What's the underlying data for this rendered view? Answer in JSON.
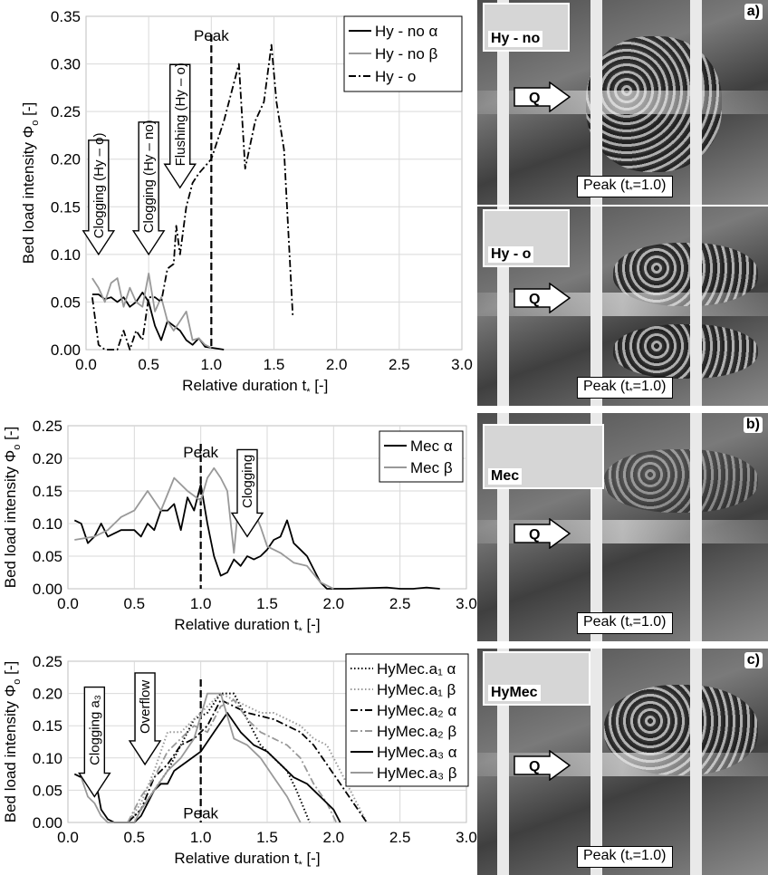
{
  "charts": [
    {
      "y_label": "Bed load intensity Φ",
      "y_label_sub": "o",
      "y_label_tail": " [-]",
      "x_label": "Relative duration t",
      "x_label_sub": "*",
      "x_label_tail": " [-]",
      "peak_label": "Peak",
      "annotations": [
        "Clogging (Hy – o)",
        "Clogging (Hy – no)",
        "Flushing (Hy – o)"
      ]
    },
    {
      "y_label": "Bed load intensity Φ",
      "y_label_sub": "o",
      "y_label_tail": " [-]",
      "x_label": "Relative duration t",
      "x_label_sub": "*",
      "x_label_tail": " [-]",
      "peak_label": "Peak",
      "annotations": [
        "Clogging"
      ]
    },
    {
      "y_label": "Bed load intensity Φ",
      "y_label_sub": "o",
      "y_label_tail": " [-]",
      "x_label": "Relative duration t",
      "x_label_sub": "*",
      "x_label_tail": " [-]",
      "peak_label": "Peak",
      "annotations": [
        "Clogging a₃",
        "Overflow"
      ]
    }
  ],
  "photos": [
    {
      "tag": "a)",
      "inset": "Hy - no",
      "q": "Q",
      "peak": "Peak (t",
      "peak_sub": "*",
      "peak_tail": "=1.0)"
    },
    {
      "tag": "",
      "inset": "Hy - o",
      "q": "Q",
      "peak": "Peak (t",
      "peak_sub": "*",
      "peak_tail": "=1.0)"
    },
    {
      "tag": "b)",
      "inset": "Mec",
      "q": "Q",
      "peak": "Peak (t",
      "peak_sub": "*",
      "peak_tail": "=1.0)"
    },
    {
      "tag": "c)",
      "inset": "HyMec",
      "q": "Q",
      "peak": "Peak (t",
      "peak_sub": "*",
      "peak_tail": "=1.0)"
    }
  ],
  "chart_data": [
    {
      "type": "line",
      "xlim": [
        0,
        3.0
      ],
      "ylim": [
        0,
        0.35
      ],
      "xticks": [
        "0.0",
        "0.5",
        "1.0",
        "1.5",
        "2.0",
        "2.5",
        "3.0"
      ],
      "yticks": [
        "0.00",
        "0.05",
        "0.10",
        "0.15",
        "0.20",
        "0.25",
        "0.30",
        "0.35"
      ],
      "grid": true,
      "legend": "top-right",
      "peak_x": 1.0,
      "series": [
        {
          "name": "Hy - no α",
          "color": "#000000",
          "dash": "solid",
          "x": [
            0.05,
            0.1,
            0.15,
            0.2,
            0.25,
            0.3,
            0.35,
            0.4,
            0.45,
            0.5,
            0.55,
            0.6,
            0.65,
            0.7,
            0.75,
            0.8,
            0.85,
            0.9,
            0.95,
            1.0,
            1.05,
            1.1
          ],
          "y": [
            0.058,
            0.058,
            0.053,
            0.055,
            0.05,
            0.055,
            0.045,
            0.05,
            0.06,
            0.05,
            0.025,
            0.01,
            0.03,
            0.025,
            0.02,
            0.01,
            0.005,
            0.012,
            0.003,
            0.002,
            0.001,
            0.0
          ]
        },
        {
          "name": "Hy - no  β",
          "color": "#999999",
          "dash": "solid",
          "x": [
            0.05,
            0.1,
            0.15,
            0.2,
            0.25,
            0.3,
            0.35,
            0.4,
            0.45,
            0.5,
            0.55,
            0.6,
            0.65,
            0.7,
            0.75,
            0.8,
            0.85,
            0.9,
            0.95,
            1.0
          ],
          "y": [
            0.075,
            0.065,
            0.05,
            0.07,
            0.075,
            0.045,
            0.065,
            0.05,
            0.045,
            0.08,
            0.04,
            0.055,
            0.03,
            0.02,
            0.03,
            0.04,
            0.01,
            0.012,
            0.005,
            0.002
          ]
        },
        {
          "name": "Hy - o",
          "color": "#000000",
          "dash": "dashdot",
          "x": [
            0.05,
            0.1,
            0.15,
            0.2,
            0.25,
            0.3,
            0.35,
            0.4,
            0.45,
            0.5,
            0.55,
            0.6,
            0.65,
            0.7,
            0.72,
            0.75,
            0.8,
            0.85,
            0.9,
            1.0,
            1.1,
            1.22,
            1.27,
            1.35,
            1.42,
            1.48,
            1.52,
            1.58,
            1.65
          ],
          "y": [
            0.055,
            0.005,
            0.0,
            0.0,
            0.0,
            0.02,
            0.0,
            0.02,
            0.01,
            0.055,
            0.055,
            0.05,
            0.085,
            0.09,
            0.13,
            0.1,
            0.15,
            0.175,
            0.185,
            0.2,
            0.24,
            0.3,
            0.19,
            0.24,
            0.26,
            0.32,
            0.26,
            0.21,
            0.035
          ]
        }
      ]
    },
    {
      "type": "line",
      "xlim": [
        0,
        3.0
      ],
      "ylim": [
        0,
        0.25
      ],
      "xticks": [
        "0.0",
        "0.5",
        "1.0",
        "1.5",
        "2.0",
        "2.5",
        "3.0"
      ],
      "yticks": [
        "0.00",
        "0.05",
        "0.10",
        "0.15",
        "0.20",
        "0.25"
      ],
      "grid": true,
      "legend": "top-right",
      "peak_x": 1.0,
      "series": [
        {
          "name": "Mec α",
          "color": "#000000",
          "dash": "solid",
          "x": [
            0.05,
            0.1,
            0.15,
            0.2,
            0.25,
            0.3,
            0.35,
            0.4,
            0.45,
            0.5,
            0.55,
            0.6,
            0.65,
            0.7,
            0.75,
            0.8,
            0.85,
            0.9,
            0.95,
            1.0,
            1.05,
            1.1,
            1.15,
            1.2,
            1.25,
            1.3,
            1.35,
            1.4,
            1.45,
            1.5,
            1.55,
            1.6,
            1.65,
            1.7,
            1.75,
            1.8,
            1.85,
            1.9,
            1.95,
            2.0,
            2.1,
            2.4,
            2.5,
            2.6,
            2.7,
            2.8
          ],
          "y": [
            0.105,
            0.1,
            0.07,
            0.08,
            0.1,
            0.08,
            0.085,
            0.09,
            0.09,
            0.09,
            0.08,
            0.1,
            0.09,
            0.12,
            0.12,
            0.13,
            0.09,
            0.14,
            0.12,
            0.16,
            0.1,
            0.05,
            0.02,
            0.025,
            0.045,
            0.035,
            0.05,
            0.045,
            0.05,
            0.06,
            0.075,
            0.08,
            0.105,
            0.07,
            0.06,
            0.05,
            0.03,
            0.01,
            0.0,
            0.0,
            0.0,
            0.002,
            0.0,
            0.0,
            0.002,
            0.0
          ]
        },
        {
          "name": "Mec β",
          "color": "#999999",
          "dash": "solid",
          "x": [
            0.05,
            0.2,
            0.3,
            0.4,
            0.5,
            0.6,
            0.7,
            0.8,
            0.9,
            1.0,
            1.05,
            1.1,
            1.15,
            1.2,
            1.25,
            1.3,
            1.35,
            1.4,
            1.45,
            1.5,
            1.6,
            1.7,
            1.8,
            1.9,
            2.0
          ],
          "y": [
            0.075,
            0.08,
            0.09,
            0.11,
            0.12,
            0.15,
            0.12,
            0.17,
            0.15,
            0.135,
            0.17,
            0.185,
            0.17,
            0.15,
            0.055,
            0.165,
            0.09,
            0.12,
            0.095,
            0.065,
            0.055,
            0.04,
            0.035,
            0.01,
            0.0
          ]
        }
      ]
    },
    {
      "type": "line",
      "xlim": [
        0,
        3.0
      ],
      "ylim": [
        0,
        0.25
      ],
      "xticks": [
        "0.0",
        "0.5",
        "1.0",
        "1.5",
        "2.0",
        "2.5",
        "3.0"
      ],
      "yticks": [
        "0.00",
        "0.05",
        "0.10",
        "0.15",
        "0.20",
        "0.25"
      ],
      "grid": true,
      "legend": "top-right",
      "peak_x": 1.0,
      "series": [
        {
          "name": "HyMec.a₁ α",
          "color": "#000000",
          "dash": "dotted",
          "x": [
            0.45,
            0.55,
            0.65,
            0.75,
            0.85,
            0.95,
            1.05,
            1.15,
            1.25,
            1.35,
            1.45,
            1.55,
            1.65,
            1.72,
            1.78,
            1.82
          ],
          "y": [
            0.0,
            0.02,
            0.05,
            0.08,
            0.12,
            0.16,
            0.17,
            0.2,
            0.2,
            0.16,
            0.12,
            0.1,
            0.08,
            0.05,
            0.02,
            0.0
          ]
        },
        {
          "name": "HyMec.a₁ β",
          "color": "#999999",
          "dash": "dotted",
          "x": [
            0.45,
            0.55,
            0.65,
            0.75,
            0.85,
            0.95,
            1.05,
            1.15,
            1.25,
            1.35,
            1.45,
            1.55,
            1.65,
            1.75,
            1.85,
            1.95,
            2.05,
            2.15,
            2.25
          ],
          "y": [
            0.0,
            0.03,
            0.08,
            0.14,
            0.14,
            0.16,
            0.18,
            0.2,
            0.19,
            0.18,
            0.17,
            0.17,
            0.16,
            0.15,
            0.13,
            0.12,
            0.08,
            0.04,
            0.0
          ]
        },
        {
          "name": "HyMec.a₂ α",
          "color": "#000000",
          "dash": "dashdot",
          "x": [
            0.45,
            0.55,
            0.65,
            0.75,
            0.85,
            0.95,
            1.05,
            1.15,
            1.25,
            1.35,
            1.45,
            1.55,
            1.65,
            1.75,
            1.85,
            1.95,
            2.05,
            2.15,
            2.25
          ],
          "y": [
            0.0,
            0.02,
            0.07,
            0.09,
            0.12,
            0.13,
            0.15,
            0.19,
            0.18,
            0.17,
            0.165,
            0.16,
            0.15,
            0.14,
            0.12,
            0.09,
            0.06,
            0.03,
            0.0
          ]
        },
        {
          "name": "HyMec.a₂ β",
          "color": "#999999",
          "dash": "dashdot",
          "x": [
            0.45,
            0.55,
            0.65,
            0.75,
            0.85,
            0.95,
            1.05,
            1.15,
            1.25,
            1.35,
            1.45,
            1.55,
            1.65,
            1.75,
            1.85,
            1.95,
            2.02
          ],
          "y": [
            0.0,
            0.04,
            0.07,
            0.11,
            0.13,
            0.15,
            0.14,
            0.18,
            0.19,
            0.16,
            0.14,
            0.13,
            0.12,
            0.1,
            0.06,
            0.03,
            0.0
          ]
        },
        {
          "name": "HyMec.a₃ α",
          "color": "#000000",
          "dash": "solid",
          "x": [
            0.05,
            0.1,
            0.15,
            0.2,
            0.25,
            0.3,
            0.35,
            0.4,
            0.5,
            0.55,
            0.6,
            0.65,
            0.7,
            0.75,
            0.8,
            0.9,
            1.0,
            1.1,
            1.2,
            1.3,
            1.4,
            1.5,
            1.6,
            1.7,
            1.8,
            1.9,
            2.0,
            2.05
          ],
          "y": [
            0.075,
            0.07,
            0.065,
            0.075,
            0.02,
            0.005,
            0.0,
            0.0,
            0.0,
            0.01,
            0.03,
            0.05,
            0.06,
            0.06,
            0.08,
            0.095,
            0.11,
            0.14,
            0.17,
            0.14,
            0.12,
            0.11,
            0.09,
            0.07,
            0.06,
            0.04,
            0.02,
            0.0
          ]
        },
        {
          "name": "HyMec.a₃ β",
          "color": "#999999",
          "dash": "solid",
          "x": [
            0.1,
            0.15,
            0.2,
            0.25,
            0.3,
            0.5,
            0.55,
            0.65,
            0.75,
            0.85,
            0.95,
            1.05,
            1.15,
            1.25,
            1.35,
            1.45,
            1.55,
            1.65,
            1.7,
            1.75
          ],
          "y": [
            0.07,
            0.04,
            0.03,
            0.01,
            0.0,
            0.0,
            0.02,
            0.05,
            0.08,
            0.1,
            0.13,
            0.2,
            0.2,
            0.13,
            0.12,
            0.1,
            0.07,
            0.04,
            0.02,
            0.0
          ]
        }
      ]
    }
  ]
}
